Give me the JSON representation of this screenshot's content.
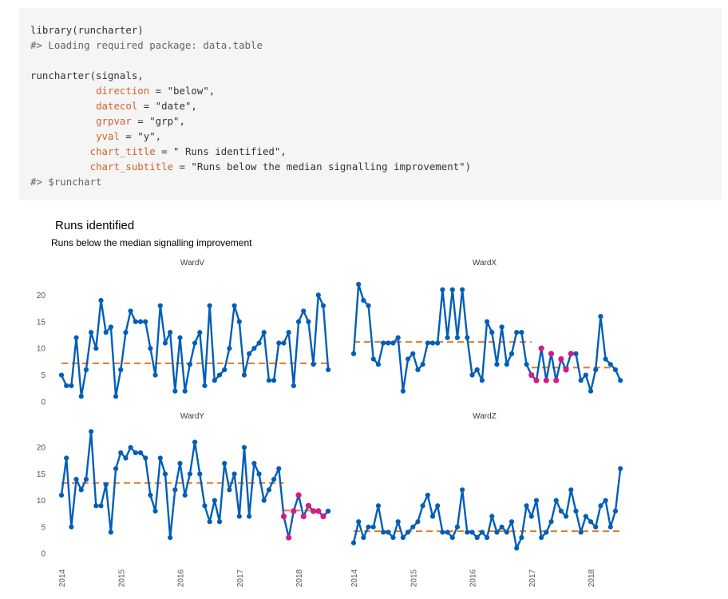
{
  "code": {
    "lines": [
      {
        "kind": "code",
        "text": "library(runcharter)"
      },
      {
        "kind": "output",
        "text": "#> Loading required package: data.table"
      },
      {
        "kind": "blank",
        "text": ""
      },
      {
        "kind": "code",
        "text": "runcharter(signals,"
      },
      {
        "kind": "arg",
        "indent": "           ",
        "name": "direction",
        "rest": " = \"below\","
      },
      {
        "kind": "arg",
        "indent": "           ",
        "name": "datecol",
        "rest": " = \"date\","
      },
      {
        "kind": "arg",
        "indent": "           ",
        "name": "grpvar",
        "rest": " = \"grp\","
      },
      {
        "kind": "arg",
        "indent": "           ",
        "name": "yval",
        "rest": " = \"y\","
      },
      {
        "kind": "arg",
        "indent": "          ",
        "name": "chart_title",
        "rest": " = \" Runs identified\","
      },
      {
        "kind": "arg",
        "indent": "          ",
        "name": "chart_subtitle",
        "rest": " = \"Runs below the median signalling improvement\")"
      },
      {
        "kind": "output",
        "text": "#> $runchart"
      }
    ]
  },
  "colors": {
    "line": "#005EB8",
    "median": "#E87722",
    "run_highlight": "#DB1884",
    "run_median": "#E87722",
    "code_background": "#f5f5f5",
    "argument_name": "#d1622a"
  },
  "chart_data": {
    "type": "line",
    "title": "Runs identified",
    "subtitle": "Runs below the median signalling improvement",
    "x_tick_labels": [
      "2014",
      "2015",
      "2016",
      "2017",
      "2018"
    ],
    "y_tick_labels": [
      "0",
      "5",
      "10",
      "15",
      "20"
    ],
    "x_range": [
      "2014-01-01",
      "2018-06-01"
    ],
    "ylim": [
      0,
      23.5
    ],
    "start_date": "2014-01-01",
    "interval": "month",
    "grid": false,
    "legend": "none",
    "panels": [
      {
        "name": "WardV",
        "values": [
          5,
          3,
          3,
          12,
          1,
          6,
          13,
          10,
          19,
          13,
          14,
          1,
          6,
          13,
          17,
          15,
          15,
          15,
          10,
          5,
          18,
          11,
          13,
          2,
          12,
          2,
          7,
          11,
          13,
          3,
          18,
          4,
          5,
          6,
          10,
          18,
          15,
          5,
          9,
          10,
          11,
          13,
          4,
          4,
          11,
          11,
          13,
          3,
          15,
          17,
          15,
          7,
          20,
          18,
          6
        ],
        "median": 7.2,
        "run": null
      },
      {
        "name": "WardX",
        "values": [
          9,
          22,
          19,
          18,
          8,
          7,
          11,
          11,
          11,
          12,
          2,
          8,
          9,
          6,
          7,
          11,
          11,
          11,
          21,
          12,
          21,
          12,
          21,
          12,
          5,
          6,
          4,
          15,
          13,
          7,
          14,
          7,
          9,
          13,
          13,
          7,
          5,
          4,
          10,
          4,
          9,
          4,
          8,
          6,
          9,
          9,
          4,
          5,
          2,
          6,
          16,
          8,
          7,
          6,
          4
        ],
        "median": 11.2,
        "run": {
          "start": 36,
          "end": 53,
          "median": 6.4,
          "highlight": [
            36,
            37,
            38,
            39,
            40,
            41,
            42,
            43,
            44
          ]
        }
      },
      {
        "name": "WardY",
        "values": [
          11,
          18,
          5,
          14,
          12,
          14,
          23,
          9,
          9,
          13,
          4,
          16,
          19,
          18,
          20,
          19,
          19,
          18,
          11,
          8,
          18,
          15,
          3,
          12,
          17,
          11,
          15,
          21,
          15,
          9,
          6,
          10,
          6,
          17,
          12,
          15,
          7,
          20,
          7,
          17,
          15,
          10,
          12,
          14,
          16,
          7,
          3,
          8,
          11,
          7,
          9,
          8,
          8,
          7,
          8
        ],
        "median": 13.3,
        "run": {
          "start": 45,
          "end": 54,
          "median": 8.1,
          "highlight": [
            45,
            46,
            47,
            48,
            49,
            50,
            51,
            52,
            53
          ]
        }
      },
      {
        "name": "WardZ",
        "values": [
          2,
          6,
          3,
          5,
          5,
          9,
          4,
          4,
          3,
          6,
          3,
          4,
          5,
          6,
          9,
          11,
          7,
          9,
          4,
          4,
          3,
          5,
          12,
          4,
          4,
          3,
          4,
          3,
          7,
          4,
          5,
          4,
          6,
          1,
          3,
          9,
          7,
          10,
          3,
          4,
          6,
          10,
          8,
          7,
          12,
          8,
          4,
          7,
          6,
          5,
          9,
          10,
          5,
          8,
          16
        ],
        "median": 4.2,
        "run": null
      }
    ]
  }
}
